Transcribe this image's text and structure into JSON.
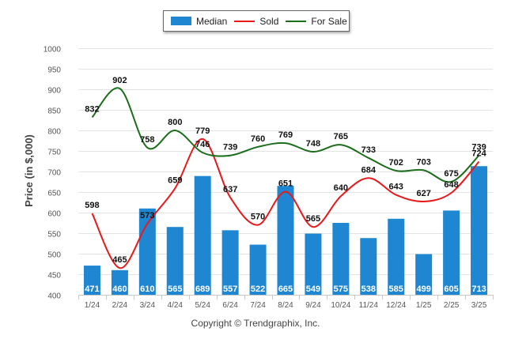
{
  "chart_data": {
    "type": "bar",
    "categories": [
      "1/24",
      "2/24",
      "3/24",
      "4/24",
      "5/24",
      "6/24",
      "7/24",
      "8/24",
      "9/24",
      "10/24",
      "11/24",
      "12/24",
      "1/25",
      "2/25",
      "3/25"
    ],
    "series": [
      {
        "name": "Median",
        "type": "bar",
        "color": "#1f87d2",
        "values": [
          471,
          460,
          610,
          565,
          689,
          557,
          522,
          665,
          549,
          575,
          538,
          585,
          499,
          605,
          713
        ]
      },
      {
        "name": "Sold",
        "type": "line",
        "color": "#e8191b",
        "values": [
          598,
          465,
          573,
          659,
          779,
          637,
          570,
          651,
          565,
          640,
          684,
          643,
          627,
          648,
          724
        ]
      },
      {
        "name": "For Sale",
        "type": "line",
        "color": "#1a6e1a",
        "values": [
          832,
          902,
          758,
          800,
          746,
          739,
          760,
          769,
          748,
          765,
          733,
          702,
          703,
          675,
          739
        ]
      }
    ],
    "title": "",
    "xlabel": "",
    "ylabel": "Price (in $,000)",
    "ylim": [
      400,
      1000
    ],
    "yticks": [
      400,
      450,
      500,
      550,
      600,
      650,
      700,
      750,
      800,
      850,
      900,
      950,
      1000
    ],
    "grid": true,
    "legend": "top-center"
  },
  "legend": {
    "median_label": "Median",
    "sold_label": "Sold",
    "for_sale_label": "For Sale"
  },
  "footer": {
    "copyright": "Copyright © Trendgraphix, Inc."
  }
}
